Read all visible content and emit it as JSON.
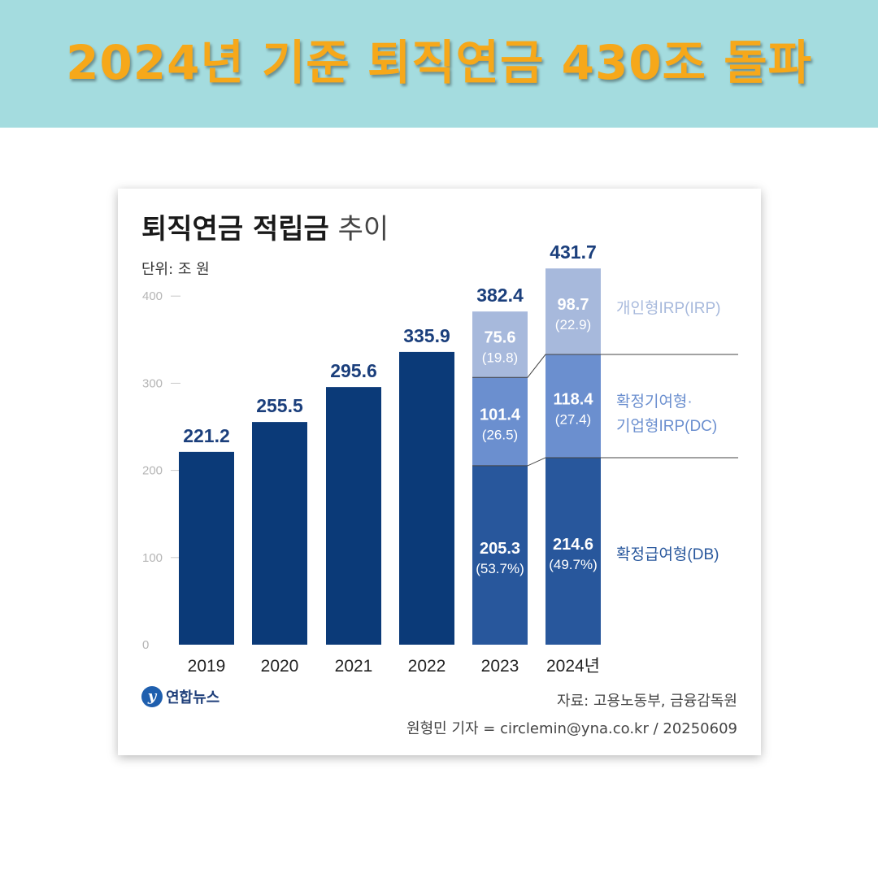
{
  "banner": {
    "title": "2024년 기준 퇴직연금 430조 돌파"
  },
  "chart_card": {
    "title_bold": "퇴직연금 적립금",
    "title_light": "추이",
    "unit": "단위: 조 원",
    "source": "자료: 고용노동부, 금융감독원",
    "credit": "원형민 기자 = circlemin@yna.co.kr / 20250609",
    "logo_text": "연합뉴스",
    "logo_mark": "y"
  },
  "chart_data": {
    "type": "bar",
    "ylim": [
      0,
      400
    ],
    "yticks": [
      "0",
      "100",
      "200",
      "300",
      "400"
    ],
    "categories": [
      "2019",
      "2020",
      "2021",
      "2022",
      "2023",
      "2024년"
    ],
    "totals": [
      221.2,
      255.5,
      295.6,
      335.9,
      382.4,
      431.7
    ],
    "total_labels": [
      "221.2",
      "255.5",
      "295.6",
      "335.9",
      "382.4",
      "431.7"
    ],
    "series": [
      {
        "name": "확정급여형(DB)",
        "values": [
          null,
          null,
          null,
          null,
          205.3,
          214.6
        ],
        "value_labels": [
          "",
          "",
          "",
          "",
          "205.3",
          "214.6"
        ],
        "share_labels": [
          "",
          "",
          "",
          "",
          "(53.7%)",
          "(49.7%)"
        ],
        "color": "#28579c"
      },
      {
        "name": "확정기여형·기업형IRP(DC)",
        "name_lines": [
          "확정기여형·",
          "기업형IRP(DC)"
        ],
        "values": [
          null,
          null,
          null,
          null,
          101.4,
          118.4
        ],
        "value_labels": [
          "",
          "",
          "",
          "",
          "101.4",
          "118.4"
        ],
        "share_labels": [
          "",
          "",
          "",
          "",
          "(26.5)",
          "(27.4)"
        ],
        "color": "#6b8fcf"
      },
      {
        "name": "개인형IRP(IRP)",
        "values": [
          null,
          null,
          null,
          null,
          75.6,
          98.7
        ],
        "value_labels": [
          "",
          "",
          "",
          "",
          "75.6",
          "98.7"
        ],
        "share_labels": [
          "",
          "",
          "",
          "",
          "(19.8)",
          "(22.9)"
        ],
        "color": "#a7b9dc"
      }
    ],
    "total_bar_color": "#0b3a78",
    "label_color": "#1b3f7c",
    "legend_placement": "right of stacked bars"
  }
}
